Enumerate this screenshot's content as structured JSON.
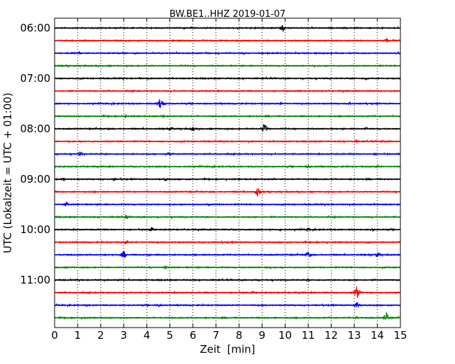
{
  "chart_data": {
    "type": "line",
    "title": "BW.BE1..HHZ 2019-01-07",
    "xlabel": "Zeit  [min]",
    "ylabel": "UTC (Lokalzeit = UTC + 01:00)",
    "xlim": [
      0,
      15
    ],
    "xticks": [
      "0",
      "1",
      "2",
      "3",
      "4",
      "5",
      "6",
      "7",
      "8",
      "9",
      "10",
      "11",
      "12",
      "13",
      "14",
      "15"
    ],
    "ytick_labels": [
      "06:00",
      "07:00",
      "08:00",
      "09:00",
      "10:00",
      "11:00"
    ],
    "grid": "vertical dotted at each minute",
    "row_interval_minutes": 15,
    "series_colors": [
      "#000000",
      "#ff0000",
      "#0000ff",
      "#008000"
    ],
    "rows": [
      {
        "start": "06:00",
        "color": "#000000",
        "events": [
          {
            "x": 9.9,
            "amp": 6
          },
          {
            "x": 8.7,
            "amp": 2
          }
        ]
      },
      {
        "start": "06:15",
        "color": "#ff0000",
        "events": [
          {
            "x": 14.4,
            "amp": 4
          }
        ]
      },
      {
        "start": "06:30",
        "color": "#0000ff",
        "events": [
          {
            "x": 1.1,
            "amp": 3
          },
          {
            "x": 2.5,
            "amp": 2
          },
          {
            "x": 14.9,
            "amp": 2
          }
        ]
      },
      {
        "start": "06:45",
        "color": "#008000",
        "events": []
      },
      {
        "start": "07:00",
        "color": "#000000",
        "events": [
          {
            "x": 3.7,
            "amp": 2
          },
          {
            "x": 8.2,
            "amp": 2
          },
          {
            "x": 13.5,
            "amp": 3
          }
        ]
      },
      {
        "start": "07:15",
        "color": "#ff0000",
        "events": []
      },
      {
        "start": "07:30",
        "color": "#0000ff",
        "events": [
          {
            "x": 4.6,
            "amp": 12
          },
          {
            "x": 9.8,
            "amp": 3
          },
          {
            "x": 12.8,
            "amp": 3
          }
        ]
      },
      {
        "start": "07:45",
        "color": "#008000",
        "events": [
          {
            "x": 3.1,
            "amp": 3
          },
          {
            "x": 4.7,
            "amp": 3
          }
        ]
      },
      {
        "start": "08:00",
        "color": "#000000",
        "events": [
          {
            "x": 9.1,
            "amp": 9
          },
          {
            "x": 6.0,
            "amp": 4
          },
          {
            "x": 5.1,
            "amp": 3
          },
          {
            "x": 13.5,
            "amp": 3
          },
          {
            "x": 2.3,
            "amp": 2
          }
        ]
      },
      {
        "start": "08:15",
        "color": "#ff0000",
        "events": [
          {
            "x": 13.1,
            "amp": 3
          },
          {
            "x": 14.2,
            "amp": 2
          }
        ]
      },
      {
        "start": "08:30",
        "color": "#0000ff",
        "events": [
          {
            "x": 1.1,
            "amp": 4
          },
          {
            "x": 4.9,
            "amp": 5
          },
          {
            "x": 13.9,
            "amp": 2
          }
        ]
      },
      {
        "start": "08:45",
        "color": "#008000",
        "events": [
          {
            "x": 11.0,
            "amp": 4
          },
          {
            "x": 14.0,
            "amp": 3
          },
          {
            "x": 4.8,
            "amp": 2
          }
        ]
      },
      {
        "start": "09:00",
        "color": "#000000",
        "events": [
          {
            "x": 0.4,
            "amp": 3
          },
          {
            "x": 2.6,
            "amp": 3
          },
          {
            "x": 4.8,
            "amp": 3
          },
          {
            "x": 9.5,
            "amp": 2
          }
        ]
      },
      {
        "start": "09:15",
        "color": "#ff0000",
        "events": [
          {
            "x": 8.8,
            "amp": 8
          }
        ]
      },
      {
        "start": "09:30",
        "color": "#0000ff",
        "events": [
          {
            "x": 0.5,
            "amp": 4
          },
          {
            "x": 6.7,
            "amp": 2
          }
        ]
      },
      {
        "start": "09:45",
        "color": "#008000",
        "events": [
          {
            "x": 3.1,
            "amp": 4
          }
        ]
      },
      {
        "start": "10:00",
        "color": "#000000",
        "events": [
          {
            "x": 4.2,
            "amp": 4
          },
          {
            "x": 11.0,
            "amp": 3
          },
          {
            "x": 13.8,
            "amp": 3
          },
          {
            "x": 9.8,
            "amp": 2
          }
        ]
      },
      {
        "start": "10:15",
        "color": "#ff0000",
        "events": [
          {
            "x": 3.1,
            "amp": 4
          },
          {
            "x": 13.6,
            "amp": 2
          }
        ]
      },
      {
        "start": "10:30",
        "color": "#0000ff",
        "events": [
          {
            "x": 3.0,
            "amp": 7
          },
          {
            "x": 11.0,
            "amp": 6
          },
          {
            "x": 14.0,
            "amp": 5
          },
          {
            "x": 4.1,
            "amp": 3
          }
        ]
      },
      {
        "start": "10:45",
        "color": "#008000",
        "events": [
          {
            "x": 4.8,
            "amp": 3
          },
          {
            "x": 9.2,
            "amp": 2
          }
        ]
      },
      {
        "start": "11:00",
        "color": "#000000",
        "events": [
          {
            "x": 2.8,
            "amp": 3
          },
          {
            "x": 8.7,
            "amp": 2
          },
          {
            "x": 11.0,
            "amp": 2
          }
        ]
      },
      {
        "start": "11:15",
        "color": "#ff0000",
        "events": [
          {
            "x": 13.1,
            "amp": 11
          },
          {
            "x": 8.6,
            "amp": 2
          }
        ]
      },
      {
        "start": "11:30",
        "color": "#0000ff",
        "events": [
          {
            "x": 13.1,
            "amp": 6
          },
          {
            "x": 4.5,
            "amp": 3
          },
          {
            "x": 1.4,
            "amp": 2
          },
          {
            "x": 9.0,
            "amp": 2
          }
        ]
      },
      {
        "start": "11:45",
        "color": "#008000",
        "events": [
          {
            "x": 14.4,
            "amp": 9
          },
          {
            "x": 13.1,
            "amp": 3
          },
          {
            "x": 1.3,
            "amp": 2
          }
        ]
      }
    ]
  }
}
